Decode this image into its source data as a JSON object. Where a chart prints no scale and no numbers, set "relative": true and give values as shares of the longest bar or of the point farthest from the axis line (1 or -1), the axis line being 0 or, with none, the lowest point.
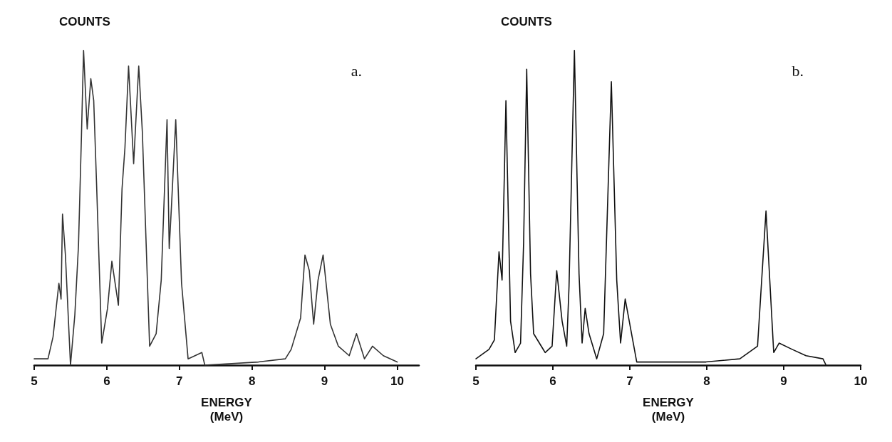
{
  "chart_data": [
    {
      "type": "line",
      "relative": true,
      "ylabel": "COUNTS",
      "xlabel": "ENERGY\n(MeV)",
      "annotations": [
        "a."
      ],
      "xlim": [
        5,
        10.3
      ],
      "xticks": [
        5,
        6,
        7,
        8,
        9,
        10
      ],
      "grid": false,
      "marker": "none",
      "line_style": "solid",
      "x": [
        5.0,
        5.19,
        5.26,
        5.34,
        5.37,
        5.39,
        5.43,
        5.5,
        5.56,
        5.61,
        5.65,
        5.68,
        5.73,
        5.78,
        5.82,
        5.86,
        5.93,
        6.01,
        6.07,
        6.16,
        6.21,
        6.25,
        6.3,
        6.37,
        6.44,
        6.49,
        6.59,
        6.68,
        6.75,
        6.83,
        6.86,
        6.89,
        6.95,
        7.03,
        7.12,
        7.31,
        7.35,
        8.09,
        8.46,
        8.54,
        8.67,
        8.73,
        8.79,
        8.85,
        8.91,
        8.98,
        9.08,
        9.19,
        9.34,
        9.44,
        9.55,
        9.66,
        9.81,
        10.0
      ],
      "series": [
        {
          "color": "#333333",
          "values": [
            0.02,
            0.02,
            0.09,
            0.26,
            0.21,
            0.48,
            0.35,
            0.0,
            0.16,
            0.38,
            0.72,
            1.0,
            0.75,
            0.91,
            0.84,
            0.57,
            0.07,
            0.18,
            0.33,
            0.19,
            0.56,
            0.69,
            0.95,
            0.64,
            0.95,
            0.74,
            0.06,
            0.1,
            0.27,
            0.78,
            0.37,
            0.5,
            0.78,
            0.26,
            0.02,
            0.04,
            0.0,
            0.01,
            0.02,
            0.05,
            0.15,
            0.35,
            0.3,
            0.13,
            0.27,
            0.35,
            0.13,
            0.06,
            0.03,
            0.1,
            0.02,
            0.06,
            0.03,
            0.01
          ]
        }
      ]
    },
    {
      "type": "line",
      "relative": true,
      "ylabel": "COUNTS",
      "xlabel": "ENERGY\n(MeV)",
      "annotations": [
        "b."
      ],
      "xlim": [
        5,
        10
      ],
      "xticks": [
        5,
        6,
        7,
        8,
        9,
        10
      ],
      "grid": false,
      "marker": "none",
      "line_style": "solid",
      "x": [
        5.0,
        5.17,
        5.24,
        5.3,
        5.34,
        5.39,
        5.45,
        5.51,
        5.58,
        5.62,
        5.66,
        5.71,
        5.75,
        5.9,
        5.99,
        6.05,
        6.12,
        6.18,
        6.21,
        6.28,
        6.34,
        6.38,
        6.42,
        6.47,
        6.57,
        6.66,
        6.76,
        6.83,
        6.88,
        6.94,
        7.09,
        7.99,
        8.43,
        8.66,
        8.77,
        8.87,
        8.94,
        9.11,
        9.29,
        9.51,
        9.55
      ],
      "series": [
        {
          "color": "#111111",
          "values": [
            0.02,
            0.05,
            0.08,
            0.36,
            0.27,
            0.84,
            0.14,
            0.04,
            0.07,
            0.39,
            0.94,
            0.29,
            0.1,
            0.04,
            0.06,
            0.3,
            0.14,
            0.06,
            0.25,
            1.0,
            0.29,
            0.07,
            0.18,
            0.1,
            0.02,
            0.1,
            0.9,
            0.27,
            0.07,
            0.21,
            0.01,
            0.01,
            0.02,
            0.06,
            0.49,
            0.04,
            0.07,
            0.05,
            0.03,
            0.02,
            0.0
          ]
        }
      ]
    }
  ]
}
